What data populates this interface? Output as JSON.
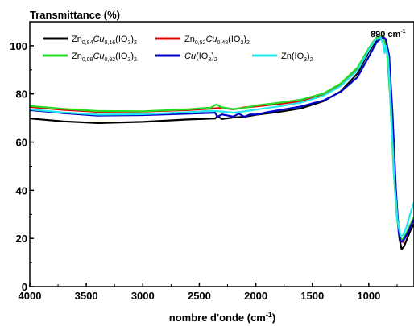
{
  "chart_data": {
    "type": "line",
    "ylabel": "Transmittance (%)",
    "xlabel_main": "nombre d'onde (cm",
    "xlabel_sup": "-1",
    "xlabel_close": ")",
    "xlim": [
      4000,
      600
    ],
    "ylim": [
      0,
      110
    ],
    "xticks": [
      4000,
      3500,
      3000,
      2500,
      2000,
      1500,
      1000
    ],
    "yticks": [
      0,
      20,
      40,
      60,
      80,
      100
    ],
    "annotation": {
      "text": "890 cm",
      "sup": "-1",
      "x": 890,
      "y": 104
    },
    "legend_position": "top-left",
    "series": [
      {
        "name_parts": [
          [
            "Zn",
            ""
          ],
          [
            "0,84",
            ""
          ],
          [
            "Cu",
            "i"
          ],
          [
            "0,16",
            ""
          ],
          [
            "(IO",
            ""
          ],
          [
            "3",
            ""
          ],
          [
            ")",
            ""
          ],
          [
            "2",
            ""
          ]
        ],
        "sub_index": [
          1,
          3,
          5,
          7
        ],
        "color": "#000000",
        "points": [
          [
            4000,
            69.8
          ],
          [
            3700,
            68.6
          ],
          [
            3400,
            67.9
          ],
          [
            3000,
            68.4
          ],
          [
            2600,
            69.4
          ],
          [
            2360,
            69.8
          ],
          [
            2340,
            70.8
          ],
          [
            2300,
            69.6
          ],
          [
            2200,
            70.2
          ],
          [
            2100,
            70.5
          ],
          [
            2000,
            71.3
          ],
          [
            1800,
            72.5
          ],
          [
            1600,
            74.0
          ],
          [
            1400,
            77.0
          ],
          [
            1250,
            81.0
          ],
          [
            1100,
            88.5
          ],
          [
            1000,
            97.5
          ],
          [
            930,
            102.5
          ],
          [
            880,
            103.5
          ],
          [
            850,
            102.5
          ],
          [
            820,
            95.0
          ],
          [
            790,
            70.0
          ],
          [
            760,
            38.0
          ],
          [
            730,
            20.0
          ],
          [
            710,
            15.5
          ],
          [
            690,
            16.5
          ],
          [
            660,
            20.0
          ],
          [
            630,
            23.5
          ],
          [
            600,
            26.0
          ]
        ]
      },
      {
        "name_parts": [
          [
            "Zn",
            ""
          ],
          [
            "0,52",
            ""
          ],
          [
            "Cu",
            "i"
          ],
          [
            "0,48",
            ""
          ],
          [
            "(IO",
            ""
          ],
          [
            "3",
            ""
          ],
          [
            ")",
            ""
          ],
          [
            "2",
            ""
          ]
        ],
        "sub_index": [
          1,
          3,
          5,
          7
        ],
        "color": "#e00000",
        "points": [
          [
            4000,
            74.6
          ],
          [
            3700,
            73.4
          ],
          [
            3400,
            72.6
          ],
          [
            3000,
            72.7
          ],
          [
            2600,
            73.3
          ],
          [
            2400,
            73.9
          ],
          [
            2300,
            74.2
          ],
          [
            2200,
            73.6
          ],
          [
            2100,
            74.4
          ],
          [
            2000,
            74.8
          ],
          [
            1800,
            75.8
          ],
          [
            1600,
            77.0
          ],
          [
            1400,
            79.5
          ],
          [
            1250,
            83.5
          ],
          [
            1100,
            90.0
          ],
          [
            1000,
            98.5
          ],
          [
            940,
            102.8
          ],
          [
            890,
            104.0
          ],
          [
            860,
            103.3
          ],
          [
            830,
            97.0
          ],
          [
            800,
            74.0
          ],
          [
            770,
            42.0
          ],
          [
            740,
            25.0
          ],
          [
            720,
            19.0
          ],
          [
            700,
            18.5
          ],
          [
            670,
            21.0
          ],
          [
            640,
            24.0
          ],
          [
            600,
            28.0
          ]
        ]
      },
      {
        "name_parts": [
          [
            "Zn",
            ""
          ],
          [
            "0,08",
            ""
          ],
          [
            "Cu",
            "i"
          ],
          [
            "0,92",
            ""
          ],
          [
            "(IO",
            ""
          ],
          [
            "3",
            ""
          ],
          [
            ")",
            ""
          ],
          [
            "2",
            ""
          ]
        ],
        "sub_index": [
          1,
          3,
          5,
          7
        ],
        "color": "#22dd22",
        "points": [
          [
            4000,
            75.0
          ],
          [
            3700,
            73.8
          ],
          [
            3400,
            72.9
          ],
          [
            3000,
            72.8
          ],
          [
            2600,
            73.6
          ],
          [
            2400,
            74.3
          ],
          [
            2350,
            75.6
          ],
          [
            2300,
            74.4
          ],
          [
            2200,
            73.7
          ],
          [
            2100,
            74.2
          ],
          [
            2000,
            75.2
          ],
          [
            1800,
            76.3
          ],
          [
            1600,
            77.6
          ],
          [
            1400,
            80.2
          ],
          [
            1250,
            84.3
          ],
          [
            1100,
            91.0
          ],
          [
            1000,
            99.0
          ],
          [
            940,
            103.0
          ],
          [
            900,
            104.0
          ],
          [
            870,
            103.5
          ],
          [
            840,
            98.0
          ],
          [
            810,
            78.0
          ],
          [
            780,
            48.0
          ],
          [
            750,
            28.0
          ],
          [
            725,
            20.5
          ],
          [
            700,
            19.5
          ],
          [
            670,
            22.0
          ],
          [
            640,
            25.0
          ],
          [
            600,
            29.0
          ]
        ]
      },
      {
        "name_parts": [
          [
            "Cu",
            "i"
          ],
          [
            "(IO",
            ""
          ],
          [
            "3",
            ""
          ],
          [
            ")",
            ""
          ],
          [
            "2",
            ""
          ]
        ],
        "sub_index": [
          2,
          4
        ],
        "color": "#0000cc",
        "points": [
          [
            4000,
            73.3
          ],
          [
            3700,
            72.0
          ],
          [
            3400,
            71.0
          ],
          [
            3000,
            71.2
          ],
          [
            2600,
            71.8
          ],
          [
            2360,
            72.2
          ],
          [
            2340,
            70.5
          ],
          [
            2300,
            71.5
          ],
          [
            2200,
            70.6
          ],
          [
            2150,
            71.8
          ],
          [
            2100,
            70.5
          ],
          [
            2050,
            71.5
          ],
          [
            2000,
            71.4
          ],
          [
            1900,
            72.4
          ],
          [
            1800,
            73.2
          ],
          [
            1600,
            74.8
          ],
          [
            1400,
            77.3
          ],
          [
            1250,
            80.8
          ],
          [
            1100,
            87.0
          ],
          [
            1000,
            95.5
          ],
          [
            930,
            101.5
          ],
          [
            880,
            103.5
          ],
          [
            850,
            102.8
          ],
          [
            820,
            96.0
          ],
          [
            790,
            72.0
          ],
          [
            760,
            40.0
          ],
          [
            735,
            22.0
          ],
          [
            715,
            18.5
          ],
          [
            690,
            19.5
          ],
          [
            660,
            22.0
          ],
          [
            630,
            25.0
          ],
          [
            600,
            28.0
          ]
        ]
      },
      {
        "name_parts": [
          [
            "Zn",
            ""
          ],
          [
            "(IO",
            ""
          ],
          [
            "3",
            ""
          ],
          [
            ")",
            ""
          ],
          [
            "2",
            ""
          ]
        ],
        "sub_index": [
          2,
          4
        ],
        "color": "#22e8ee",
        "points": [
          [
            4000,
            73.6
          ],
          [
            3700,
            72.3
          ],
          [
            3400,
            71.4
          ],
          [
            3000,
            71.6
          ],
          [
            2600,
            72.4
          ],
          [
            2400,
            73.0
          ],
          [
            2300,
            72.7
          ],
          [
            2200,
            72.2
          ],
          [
            2100,
            72.8
          ],
          [
            2000,
            73.5
          ],
          [
            1800,
            74.8
          ],
          [
            1600,
            76.4
          ],
          [
            1400,
            79.3
          ],
          [
            1250,
            83.3
          ],
          [
            1100,
            89.8
          ],
          [
            1000,
            98.3
          ],
          [
            940,
            102.5
          ],
          [
            895,
            103.3
          ],
          [
            875,
            101.0
          ],
          [
            860,
            97.0
          ],
          [
            850,
            100.0
          ],
          [
            830,
            96.0
          ],
          [
            805,
            76.0
          ],
          [
            775,
            45.0
          ],
          [
            745,
            27.0
          ],
          [
            720,
            21.0
          ],
          [
            695,
            21.5
          ],
          [
            665,
            25.0
          ],
          [
            635,
            30.0
          ],
          [
            600,
            35.0
          ]
        ]
      }
    ]
  }
}
